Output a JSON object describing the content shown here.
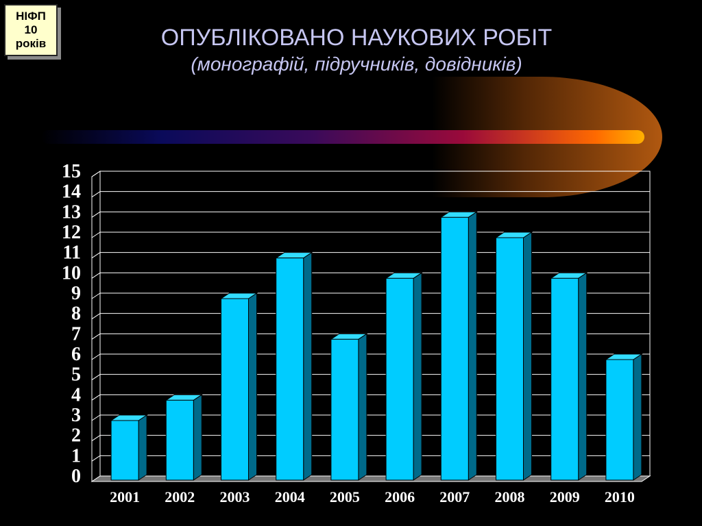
{
  "badge": {
    "line1": "НІФП",
    "line2": "10",
    "line3": "років"
  },
  "header": {
    "title": "ОПУБЛІКОВАНО НАУКОВИХ РОБІТ",
    "subtitle": "(монографій, підручників, довідників)"
  },
  "colors": {
    "bar_front": "#00ccff",
    "bar_side": "#006a8a",
    "bar_top": "#33ddff",
    "grid": "#ffffff",
    "floor": "#777777",
    "background": "#000000"
  },
  "chart_data": {
    "type": "bar",
    "categories": [
      "2001",
      "2002",
      "2003",
      "2004",
      "2005",
      "2006",
      "2007",
      "2008",
      "2009",
      "2010"
    ],
    "values": [
      3,
      4,
      9,
      11,
      7,
      10,
      13,
      12,
      10,
      6
    ],
    "ylim": [
      0,
      15
    ],
    "yticks": [
      "0",
      "1",
      "2",
      "3",
      "4",
      "5",
      "6",
      "7",
      "8",
      "9",
      "10",
      "11",
      "12",
      "13",
      "14",
      "15"
    ],
    "grid": true,
    "legend": "none"
  }
}
